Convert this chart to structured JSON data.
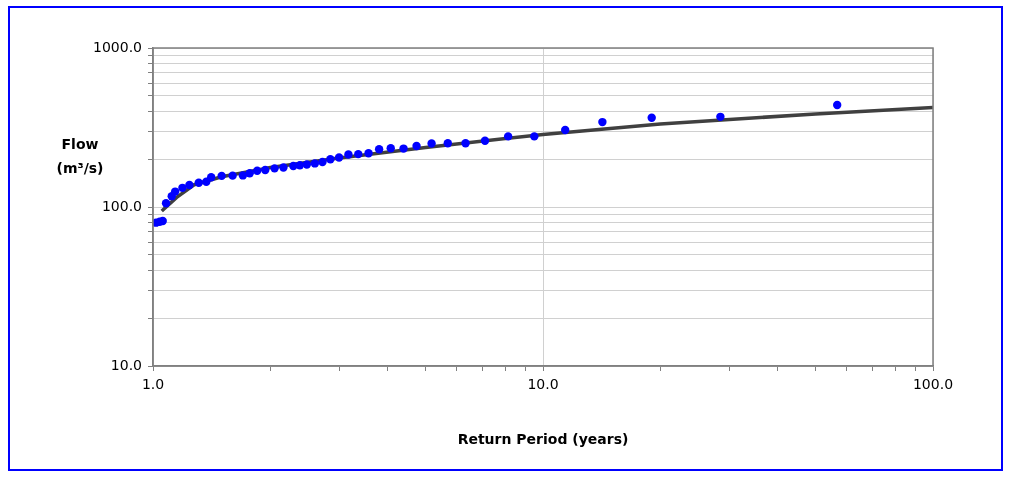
{
  "chart_data": {
    "type": "scatter",
    "xlabel": "Return Period (years)",
    "ylabel": "Flow (m³/s)",
    "log": "xy",
    "grid": true,
    "legend": false,
    "xlim": [
      1,
      100
    ],
    "ylim": [
      10,
      1000
    ],
    "xticks": [
      {
        "value": 1,
        "label": "1.0"
      },
      {
        "value": 2,
        "label": null
      },
      {
        "value": 3,
        "label": null
      },
      {
        "value": 4,
        "label": null
      },
      {
        "value": 5,
        "label": null
      },
      {
        "value": 6,
        "label": null
      },
      {
        "value": 7,
        "label": null
      },
      {
        "value": 8,
        "label": null
      },
      {
        "value": 9,
        "label": null
      },
      {
        "value": 10,
        "label": "10.0"
      },
      {
        "value": 20,
        "label": null
      },
      {
        "value": 30,
        "label": null
      },
      {
        "value": 40,
        "label": null
      },
      {
        "value": 50,
        "label": null
      },
      {
        "value": 60,
        "label": null
      },
      {
        "value": 70,
        "label": null
      },
      {
        "value": 80,
        "label": null
      },
      {
        "value": 90,
        "label": null
      },
      {
        "value": 100,
        "label": "100.0"
      }
    ],
    "yticks": [
      {
        "value": 10,
        "label": "10.0"
      },
      {
        "value": 20,
        "label": null
      },
      {
        "value": 30,
        "label": null
      },
      {
        "value": 40,
        "label": null
      },
      {
        "value": 50,
        "label": null
      },
      {
        "value": 60,
        "label": null
      },
      {
        "value": 70,
        "label": null
      },
      {
        "value": 80,
        "label": null
      },
      {
        "value": 90,
        "label": null
      },
      {
        "value": 100,
        "label": "100.0"
      },
      {
        "value": 200,
        "label": null
      },
      {
        "value": 300,
        "label": null
      },
      {
        "value": 400,
        "label": null
      },
      {
        "value": 500,
        "label": null
      },
      {
        "value": 600,
        "label": null
      },
      {
        "value": 700,
        "label": null
      },
      {
        "value": 800,
        "label": null
      },
      {
        "value": 900,
        "label": null
      },
      {
        "value": 1000,
        "label": "1000.0"
      }
    ],
    "series": [
      {
        "type": "line",
        "marker": "none",
        "line_style": "solid",
        "color": "#404040",
        "x": [
          1.053,
          1.15,
          1.275,
          1.5,
          2,
          3,
          5,
          10,
          20,
          50,
          100
        ],
        "values": [
          94.4,
          115,
          138,
          155,
          177,
          203,
          237,
          286,
          333,
          385,
          423
        ]
      },
      {
        "marker": "circle",
        "color": "#0000ff",
        "x": [
          1.018,
          1.04,
          1.059,
          1.08,
          1.117,
          1.14,
          1.19,
          1.24,
          1.31,
          1.37,
          1.41,
          1.5,
          1.6,
          1.7,
          1.77,
          1.85,
          1.94,
          2.05,
          2.16,
          2.29,
          2.38,
          2.48,
          2.6,
          2.72,
          2.85,
          3.0,
          3.17,
          3.36,
          3.57,
          3.8,
          4.07,
          4.39,
          4.74,
          5.18,
          5.7,
          6.33,
          7.1,
          8.14,
          9.5,
          11.4,
          14.2,
          19.0,
          28.5,
          56.8
        ],
        "values": [
          79.7,
          80.7,
          81.7,
          105.5,
          117,
          125,
          132,
          137.5,
          142,
          144,
          154,
          157,
          157.5,
          158,
          163,
          169,
          171,
          175,
          177,
          181,
          183,
          185,
          188,
          192,
          199.5,
          205,
          214,
          215,
          218,
          231,
          234,
          233,
          242,
          251,
          252,
          252,
          261,
          278,
          278,
          305,
          342,
          364,
          369,
          438
        ]
      }
    ]
  }
}
